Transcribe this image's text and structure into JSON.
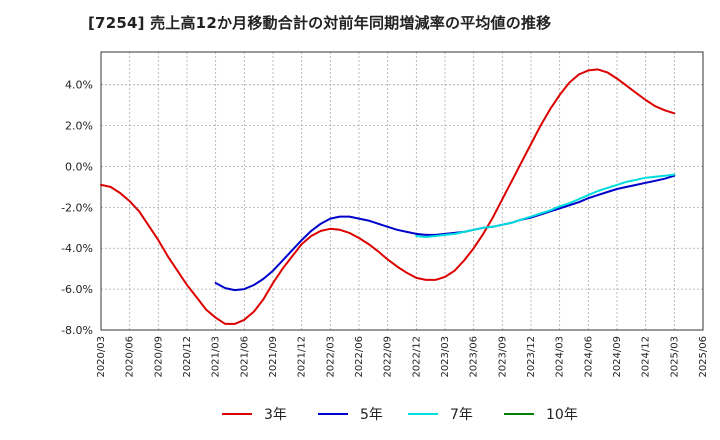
{
  "chart_data": {
    "type": "line",
    "title": "[7254]  売上高12か月移動合計の対前年同期増減率の平均値の推移",
    "xlabel": "",
    "ylabel": "",
    "ylim": [
      -8.0,
      5.6
    ],
    "y_ticks": [
      {
        "value": 4.0,
        "label": "4.0%"
      },
      {
        "value": 2.0,
        "label": "2.0%"
      },
      {
        "value": 0.0,
        "label": "0.0%"
      },
      {
        "value": -2.0,
        "label": "-2.0%"
      },
      {
        "value": -4.0,
        "label": "-4.0%"
      },
      {
        "value": -6.0,
        "label": "-6.0%"
      },
      {
        "value": -8.0,
        "label": "-8.0%"
      }
    ],
    "x_range": [
      "2020-03",
      "2025-06"
    ],
    "x_ticks": [
      "2020/03",
      "2020/06",
      "2020/09",
      "2020/12",
      "2021/03",
      "2021/06",
      "2021/09",
      "2021/12",
      "2022/03",
      "2022/06",
      "2022/09",
      "2022/12",
      "2023/03",
      "2023/06",
      "2023/09",
      "2023/12",
      "2024/03",
      "2024/06",
      "2024/09",
      "2024/12",
      "2025/03",
      "2025/06"
    ],
    "grid": true,
    "legend_position": "bottom",
    "series": [
      {
        "name": "3年",
        "color": "#dd0000",
        "points": [
          [
            "2020-03",
            -0.9
          ],
          [
            "2020-04",
            -1.0
          ],
          [
            "2020-05",
            -1.3
          ],
          [
            "2020-06",
            -1.7
          ],
          [
            "2020-07",
            -2.2
          ],
          [
            "2020-08",
            -2.9
          ],
          [
            "2020-09",
            -3.6
          ],
          [
            "2020-10",
            -4.4
          ],
          [
            "2020-11",
            -5.1
          ],
          [
            "2020-12",
            -5.8
          ],
          [
            "2021-01",
            -6.4
          ],
          [
            "2021-02",
            -7.0
          ],
          [
            "2021-03",
            -7.4
          ],
          [
            "2021-04",
            -7.7
          ],
          [
            "2021-05",
            -7.7
          ],
          [
            "2021-06",
            -7.5
          ],
          [
            "2021-07",
            -7.1
          ],
          [
            "2021-08",
            -6.5
          ],
          [
            "2021-09",
            -5.7
          ],
          [
            "2021-10",
            -5.0
          ],
          [
            "2021-11",
            -4.4
          ],
          [
            "2021-12",
            -3.8
          ],
          [
            "2022-01",
            -3.4
          ],
          [
            "2022-02",
            -3.15
          ],
          [
            "2022-03",
            -3.05
          ],
          [
            "2022-04",
            -3.1
          ],
          [
            "2022-05",
            -3.25
          ],
          [
            "2022-06",
            -3.5
          ],
          [
            "2022-07",
            -3.8
          ],
          [
            "2022-08",
            -4.15
          ],
          [
            "2022-09",
            -4.55
          ],
          [
            "2022-10",
            -4.9
          ],
          [
            "2022-11",
            -5.2
          ],
          [
            "2022-12",
            -5.45
          ],
          [
            "2023-01",
            -5.55
          ],
          [
            "2023-02",
            -5.55
          ],
          [
            "2023-03",
            -5.4
          ],
          [
            "2023-04",
            -5.1
          ],
          [
            "2023-05",
            -4.6
          ],
          [
            "2023-06",
            -4.0
          ],
          [
            "2023-07",
            -3.3
          ],
          [
            "2023-08",
            -2.5
          ],
          [
            "2023-09",
            -1.6
          ],
          [
            "2023-10",
            -0.7
          ],
          [
            "2023-11",
            0.2
          ],
          [
            "2023-12",
            1.1
          ],
          [
            "2024-01",
            2.0
          ],
          [
            "2024-02",
            2.8
          ],
          [
            "2024-03",
            3.5
          ],
          [
            "2024-04",
            4.1
          ],
          [
            "2024-05",
            4.5
          ],
          [
            "2024-06",
            4.7
          ],
          [
            "2024-07",
            4.75
          ],
          [
            "2024-08",
            4.6
          ],
          [
            "2024-09",
            4.3
          ],
          [
            "2024-10",
            3.95
          ],
          [
            "2024-11",
            3.6
          ],
          [
            "2024-12",
            3.25
          ],
          [
            "2025-01",
            2.95
          ],
          [
            "2025-02",
            2.75
          ],
          [
            "2025-03",
            2.6
          ]
        ]
      },
      {
        "name": "5年",
        "color": "#0000cc",
        "points": [
          [
            "2021-03",
            -5.7
          ],
          [
            "2021-04",
            -5.95
          ],
          [
            "2021-05",
            -6.05
          ],
          [
            "2021-06",
            -6.0
          ],
          [
            "2021-07",
            -5.8
          ],
          [
            "2021-08",
            -5.5
          ],
          [
            "2021-09",
            -5.1
          ],
          [
            "2021-10",
            -4.6
          ],
          [
            "2021-11",
            -4.1
          ],
          [
            "2021-12",
            -3.6
          ],
          [
            "2022-01",
            -3.15
          ],
          [
            "2022-02",
            -2.8
          ],
          [
            "2022-03",
            -2.55
          ],
          [
            "2022-04",
            -2.45
          ],
          [
            "2022-05",
            -2.45
          ],
          [
            "2022-06",
            -2.55
          ],
          [
            "2022-07",
            -2.65
          ],
          [
            "2022-08",
            -2.8
          ],
          [
            "2022-09",
            -2.95
          ],
          [
            "2022-10",
            -3.1
          ],
          [
            "2022-11",
            -3.2
          ],
          [
            "2022-12",
            -3.3
          ],
          [
            "2023-01",
            -3.35
          ],
          [
            "2023-02",
            -3.35
          ],
          [
            "2023-03",
            -3.3
          ],
          [
            "2023-04",
            -3.25
          ],
          [
            "2023-05",
            -3.2
          ],
          [
            "2023-06",
            -3.1
          ],
          [
            "2023-07",
            -3.0
          ],
          [
            "2023-08",
            -2.95
          ],
          [
            "2023-09",
            -2.85
          ],
          [
            "2023-10",
            -2.75
          ],
          [
            "2023-11",
            -2.6
          ],
          [
            "2023-12",
            -2.5
          ],
          [
            "2024-01",
            -2.35
          ],
          [
            "2024-02",
            -2.2
          ],
          [
            "2024-03",
            -2.05
          ],
          [
            "2024-04",
            -1.9
          ],
          [
            "2024-05",
            -1.75
          ],
          [
            "2024-06",
            -1.55
          ],
          [
            "2024-07",
            -1.4
          ],
          [
            "2024-08",
            -1.25
          ],
          [
            "2024-09",
            -1.1
          ],
          [
            "2024-10",
            -1.0
          ],
          [
            "2024-11",
            -0.9
          ],
          [
            "2024-12",
            -0.8
          ],
          [
            "2025-01",
            -0.7
          ],
          [
            "2025-02",
            -0.6
          ],
          [
            "2025-03",
            -0.45
          ]
        ]
      },
      {
        "name": "7年",
        "color": "#00dddd",
        "points": [
          [
            "2022-12",
            -3.4
          ],
          [
            "2023-01",
            -3.45
          ],
          [
            "2023-02",
            -3.4
          ],
          [
            "2023-03",
            -3.35
          ],
          [
            "2023-04",
            -3.3
          ],
          [
            "2023-05",
            -3.2
          ],
          [
            "2023-06",
            -3.1
          ],
          [
            "2023-07",
            -3.0
          ],
          [
            "2023-08",
            -2.95
          ],
          [
            "2023-09",
            -2.85
          ],
          [
            "2023-10",
            -2.75
          ],
          [
            "2023-11",
            -2.6
          ],
          [
            "2023-12",
            -2.45
          ],
          [
            "2024-01",
            -2.3
          ],
          [
            "2024-02",
            -2.15
          ],
          [
            "2024-03",
            -1.95
          ],
          [
            "2024-04",
            -1.8
          ],
          [
            "2024-05",
            -1.6
          ],
          [
            "2024-06",
            -1.4
          ],
          [
            "2024-07",
            -1.2
          ],
          [
            "2024-08",
            -1.05
          ],
          [
            "2024-09",
            -0.9
          ],
          [
            "2024-10",
            -0.75
          ],
          [
            "2024-11",
            -0.65
          ],
          [
            "2024-12",
            -0.55
          ],
          [
            "2025-01",
            -0.5
          ],
          [
            "2025-02",
            -0.45
          ],
          [
            "2025-03",
            -0.4
          ]
        ]
      },
      {
        "name": "10年",
        "color": "#008000",
        "points": []
      }
    ]
  }
}
